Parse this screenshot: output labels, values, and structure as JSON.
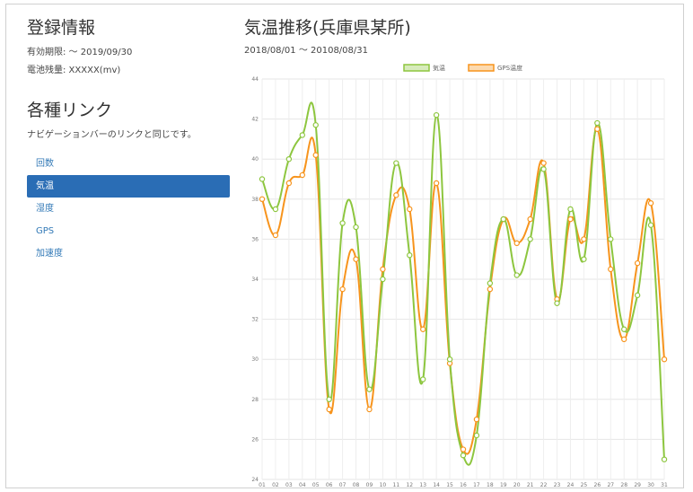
{
  "registration": {
    "title": "登録情報",
    "validity": "有効期限: ～ 2019/09/30",
    "balance": "電池残量: XXXXX(mv)"
  },
  "links": {
    "title": "各種リンク",
    "description": "ナビゲーションバーのリンクと同じです。",
    "items": [
      {
        "label": "回数",
        "active": false
      },
      {
        "label": "気温",
        "active": true
      },
      {
        "label": "湿度",
        "active": false
      },
      {
        "label": "GPS",
        "active": false
      },
      {
        "label": "加速度",
        "active": false
      }
    ]
  },
  "colors": {
    "accent": "#2a6db5",
    "link": "#337ab7",
    "series_temp": "#8dc63f",
    "series_gps": "#f7941d"
  },
  "chart_data": {
    "type": "line",
    "title": "気温推移(兵庫県某所)",
    "subtitle": "2018/08/01 ～ 20108/08/31",
    "categories": [
      "01",
      "02",
      "03",
      "04",
      "05",
      "06",
      "07",
      "08",
      "09",
      "10",
      "11",
      "12",
      "13",
      "14",
      "15",
      "16",
      "17",
      "18",
      "19",
      "20",
      "21",
      "22",
      "23",
      "24",
      "25",
      "26",
      "27",
      "28",
      "29",
      "30",
      "31"
    ],
    "ylim": [
      24,
      44
    ],
    "yticks": [
      24,
      26,
      28,
      30,
      32,
      34,
      36,
      38,
      40,
      42,
      44
    ],
    "grid": true,
    "legend_position": "top",
    "series": [
      {
        "name": "気温",
        "color": "#8dc63f",
        "values": [
          39.0,
          37.5,
          40.0,
          41.2,
          41.7,
          28.0,
          36.8,
          36.6,
          28.5,
          34.0,
          39.8,
          35.2,
          29.0,
          42.2,
          30.0,
          25.2,
          26.2,
          33.8,
          37.0,
          34.2,
          36.0,
          39.5,
          32.8,
          37.5,
          35.0,
          41.8,
          36.0,
          31.5,
          33.2,
          36.7,
          25.0
        ]
      },
      {
        "name": "GPS温度",
        "color": "#f7941d",
        "values": [
          38.0,
          36.2,
          38.8,
          39.2,
          40.2,
          27.5,
          33.5,
          35.0,
          27.5,
          34.5,
          38.2,
          37.5,
          31.5,
          38.8,
          29.8,
          25.5,
          27.0,
          33.5,
          37.0,
          35.8,
          37.0,
          39.8,
          33.0,
          37.0,
          36.0,
          41.5,
          34.5,
          31.0,
          34.8,
          37.8,
          30.0
        ]
      }
    ]
  }
}
